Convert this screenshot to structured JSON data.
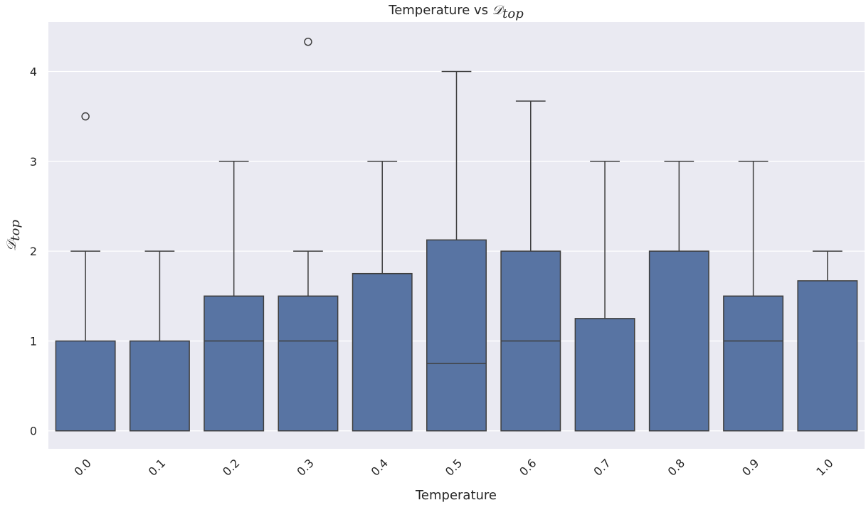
{
  "chart_data": {
    "type": "box",
    "title": "Temperature vs 𝒟top",
    "title_text": "Temperature vs ",
    "title_math": "𝒟",
    "title_sub": "top",
    "xlabel": "Temperature",
    "ylabel_math": "𝒟",
    "ylabel_sub": "top",
    "categories": [
      "0.0",
      "0.1",
      "0.2",
      "0.3",
      "0.4",
      "0.5",
      "0.6",
      "0.7",
      "0.8",
      "0.9",
      "1.0"
    ],
    "ylim": [
      -0.2,
      4.55
    ],
    "yticks": [
      0,
      1,
      2,
      3,
      4
    ],
    "ytick_labels": [
      "0",
      "1",
      "2",
      "3",
      "4"
    ],
    "grid": true,
    "box_color": "#5874a3",
    "background_color": "#eaeaf2",
    "boxes": [
      {
        "category": "0.0",
        "whislo": 0,
        "q1": 0,
        "median": 0,
        "q3": 1,
        "whishi": 2,
        "fliers": [
          3.5
        ]
      },
      {
        "category": "0.1",
        "whislo": 0,
        "q1": 0,
        "median": 0,
        "q3": 1,
        "whishi": 2,
        "fliers": []
      },
      {
        "category": "0.2",
        "whislo": 0,
        "q1": 0,
        "median": 1,
        "q3": 1.5,
        "whishi": 3,
        "fliers": []
      },
      {
        "category": "0.3",
        "whislo": 0,
        "q1": 0,
        "median": 1,
        "q3": 1.5,
        "whishi": 2,
        "fliers": [
          4.33
        ]
      },
      {
        "category": "0.4",
        "whislo": 0,
        "q1": 0,
        "median": 0,
        "q3": 1.75,
        "whishi": 3,
        "fliers": []
      },
      {
        "category": "0.5",
        "whislo": 0,
        "q1": 0,
        "median": 0.75,
        "q3": 2.125,
        "whishi": 4,
        "fliers": []
      },
      {
        "category": "0.6",
        "whislo": 0,
        "q1": 0,
        "median": 1,
        "q3": 2,
        "whishi": 3.67,
        "fliers": []
      },
      {
        "category": "0.7",
        "whislo": 0,
        "q1": 0,
        "median": 0,
        "q3": 1.25,
        "whishi": 3,
        "fliers": []
      },
      {
        "category": "0.8",
        "whislo": 0,
        "q1": 0,
        "median": 0,
        "q3": 2,
        "whishi": 3,
        "fliers": []
      },
      {
        "category": "0.9",
        "whislo": 0,
        "q1": 0,
        "median": 1,
        "q3": 1.5,
        "whishi": 3,
        "fliers": []
      },
      {
        "category": "1.0",
        "whislo": 0,
        "q1": 0,
        "median": 0,
        "q3": 1.67,
        "whishi": 2,
        "fliers": []
      }
    ]
  }
}
